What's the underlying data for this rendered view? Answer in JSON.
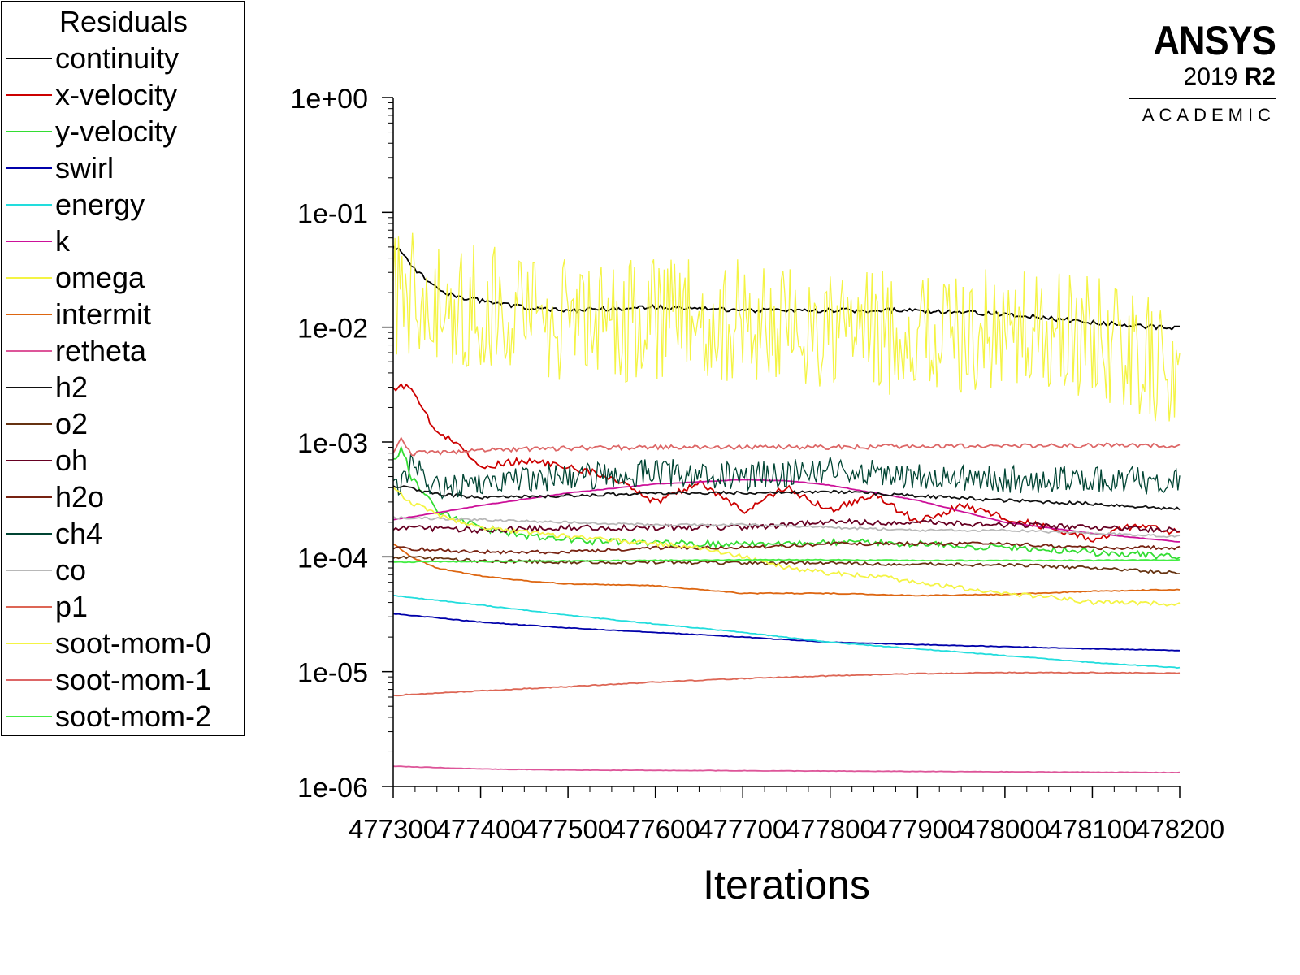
{
  "legend": {
    "title": "Residuals",
    "items": [
      {
        "label": "continuity",
        "color": "#000000"
      },
      {
        "label": "x-velocity",
        "color": "#cc0000"
      },
      {
        "label": "y-velocity",
        "color": "#33dd33"
      },
      {
        "label": "swirl",
        "color": "#0000aa"
      },
      {
        "label": "energy",
        "color": "#22dddd"
      },
      {
        "label": "k",
        "color": "#cc1199"
      },
      {
        "label": "omega",
        "color": "#f4f444"
      },
      {
        "label": "intermit",
        "color": "#dd6611"
      },
      {
        "label": "retheta",
        "color": "#dd5599"
      },
      {
        "label": "h2",
        "color": "#111111"
      },
      {
        "label": "o2",
        "color": "#663311"
      },
      {
        "label": "oh",
        "color": "#660022"
      },
      {
        "label": "h2o",
        "color": "#772211"
      },
      {
        "label": "ch4",
        "color": "#004433"
      },
      {
        "label": "co",
        "color": "#b8b8b8"
      },
      {
        "label": "p1",
        "color": "#dd6655"
      },
      {
        "label": "soot-mom-0",
        "color": "#f4f444"
      },
      {
        "label": "soot-mom-1",
        "color": "#dd6666"
      },
      {
        "label": "soot-mom-2",
        "color": "#44ee44"
      }
    ]
  },
  "brand": {
    "name": "ANSYS",
    "version": "2019",
    "release": "R2",
    "edition": "ACADEMIC"
  },
  "chart_data": {
    "type": "line",
    "title": "",
    "xlabel": "Iterations",
    "ylabel": "",
    "yscale": "log",
    "xlim": [
      477300,
      478200
    ],
    "ylim": [
      1e-06,
      1
    ],
    "x_ticks": [
      "477300",
      "477400",
      "477500",
      "477600",
      "477700",
      "477800",
      "477900",
      "478000",
      "478100",
      "478200"
    ],
    "y_ticks": [
      "1e+00",
      "1e-01",
      "1e-02",
      "1e-03",
      "1e-04",
      "1e-05",
      "1e-06"
    ],
    "series": [
      {
        "name": "continuity",
        "color": "#000000",
        "noise": 0.02,
        "x": [
          477300,
          477310,
          477320,
          477340,
          477360,
          477380,
          477400,
          477450,
          477500,
          477600,
          477700,
          477800,
          477900,
          478000,
          478100,
          478200
        ],
        "y": [
          0.05,
          0.045,
          0.035,
          0.025,
          0.02,
          0.018,
          0.017,
          0.015,
          0.014,
          0.015,
          0.014,
          0.014,
          0.014,
          0.013,
          0.011,
          0.0097
        ]
      },
      {
        "name": "x-velocity",
        "color": "#cc0000",
        "noise": 0.03,
        "x": [
          477300,
          477315,
          477330,
          477350,
          477380,
          477400,
          477450,
          477500,
          477550,
          477600,
          477650,
          477700,
          477750,
          477800,
          477850,
          477900,
          477950,
          478000,
          478050,
          478100,
          478150,
          478200
        ],
        "y": [
          0.0028,
          0.0032,
          0.0022,
          0.0012,
          0.0009,
          0.0006,
          0.0007,
          0.0006,
          0.0005,
          0.0003,
          0.00045,
          0.00025,
          0.0004,
          0.00025,
          0.00035,
          0.0002,
          0.00028,
          0.00022,
          0.00018,
          0.00014,
          0.00019,
          0.00016
        ]
      },
      {
        "name": "y-velocity",
        "color": "#33dd33",
        "noise": 0.03,
        "x": [
          477300,
          477310,
          477320,
          477330,
          477350,
          477400,
          477450,
          477500,
          477600,
          477700,
          477800,
          477900,
          478000,
          478100,
          478200
        ],
        "y": [
          0.0007,
          0.0009,
          0.0005,
          0.0004,
          0.00025,
          0.00018,
          0.00015,
          0.00014,
          0.00013,
          0.00013,
          0.000135,
          0.00013,
          0.00012,
          0.00011,
          0.0001
        ]
      },
      {
        "name": "swirl",
        "color": "#0000aa",
        "noise": 0.003,
        "x": [
          477300,
          477400,
          477500,
          477600,
          477700,
          477800,
          477900,
          478000,
          478100,
          478200
        ],
        "y": [
          3.2e-05,
          2.7e-05,
          2.4e-05,
          2.2e-05,
          2e-05,
          1.8e-05,
          1.72e-05,
          1.65e-05,
          1.58e-05,
          1.53e-05
        ]
      },
      {
        "name": "energy",
        "color": "#22dddd",
        "noise": 0.003,
        "x": [
          477300,
          477400,
          477500,
          477600,
          477700,
          477800,
          477900,
          478000,
          478100,
          478200
        ],
        "y": [
          4.6e-05,
          3.8e-05,
          3.1e-05,
          2.6e-05,
          2.2e-05,
          1.8e-05,
          1.58e-05,
          1.38e-05,
          1.2e-05,
          1.08e-05
        ]
      },
      {
        "name": "k",
        "color": "#cc1199",
        "noise": 0.002,
        "x": [
          477300,
          477400,
          477500,
          477600,
          477700,
          477750,
          477800,
          477900,
          478000,
          478100,
          478200
        ],
        "y": [
          0.00021,
          0.00028,
          0.00036,
          0.00043,
          0.00047,
          0.00046,
          0.00042,
          0.00031,
          0.0002,
          0.00016,
          0.000135
        ]
      },
      {
        "name": "omega",
        "color": "#f4f444",
        "noise": 0.55,
        "x": [
          477300,
          477400,
          477500,
          477600,
          477700,
          477800,
          477900,
          478000,
          478100,
          478150,
          478200
        ],
        "y": [
          0.02,
          0.015,
          0.012,
          0.011,
          0.011,
          0.009,
          0.009,
          0.009,
          0.008,
          0.006,
          0.004
        ]
      },
      {
        "name": "intermit",
        "color": "#dd6611",
        "noise": 0.004,
        "x": [
          477300,
          477320,
          477350,
          477400,
          477450,
          477500,
          477600,
          477700,
          477800,
          477900,
          478000,
          478100,
          478200
        ],
        "y": [
          0.00013,
          0.0001,
          8e-05,
          6.8e-05,
          6.2e-05,
          5.8e-05,
          5.6e-05,
          4.8e-05,
          4.8e-05,
          4.6e-05,
          4.7e-05,
          5e-05,
          5.2e-05
        ]
      },
      {
        "name": "retheta",
        "color": "#dd5599",
        "noise": 0.002,
        "x": [
          477300,
          477400,
          477500,
          477600,
          477700,
          477800,
          477900,
          478000,
          478100,
          478200
        ],
        "y": [
          1.5e-06,
          1.42e-06,
          1.39e-06,
          1.38e-06,
          1.37e-06,
          1.36e-06,
          1.35e-06,
          1.34e-06,
          1.33e-06,
          1.32e-06
        ]
      },
      {
        "name": "h2",
        "color": "#111111",
        "noise": 0.015,
        "x": [
          477300,
          477320,
          477350,
          477400,
          477500,
          477600,
          477700,
          477800,
          477900,
          478000,
          478100,
          478200
        ],
        "y": [
          0.00042,
          0.00039,
          0.00035,
          0.00033,
          0.00034,
          0.00036,
          0.00036,
          0.00037,
          0.00034,
          0.00031,
          0.00029,
          0.00026
        ]
      },
      {
        "name": "o2",
        "color": "#663311",
        "noise": 0.015,
        "x": [
          477300,
          477400,
          477500,
          477600,
          477700,
          477800,
          477900,
          478000,
          478100,
          478200
        ],
        "y": [
          0.0001,
          9.2e-05,
          9e-05,
          9e-05,
          8.8e-05,
          8.8e-05,
          8.6e-05,
          8.5e-05,
          8e-05,
          7.2e-05
        ]
      },
      {
        "name": "oh",
        "color": "#660022",
        "noise": 0.025,
        "x": [
          477300,
          477400,
          477500,
          477600,
          477700,
          477800,
          477900,
          478000,
          478100,
          478200
        ],
        "y": [
          0.00018,
          0.00017,
          0.00018,
          0.00018,
          0.00018,
          0.0002,
          0.0002,
          0.00019,
          0.00018,
          0.00017
        ]
      },
      {
        "name": "h2o",
        "color": "#772211",
        "noise": 0.015,
        "x": [
          477300,
          477400,
          477500,
          477600,
          477700,
          477800,
          477900,
          478000,
          478100,
          478200
        ],
        "y": [
          0.00012,
          0.00011,
          0.00011,
          0.00012,
          0.00012,
          0.00013,
          0.00013,
          0.00013,
          0.00012,
          0.00012
        ]
      },
      {
        "name": "ch4",
        "color": "#004433",
        "noise": 0.12,
        "x": [
          477300,
          477320,
          477350,
          477400,
          477500,
          477600,
          477700,
          477800,
          477900,
          478000,
          478100,
          478200
        ],
        "y": [
          0.0004,
          0.0006,
          0.0004,
          0.00045,
          0.0005,
          0.00055,
          0.0005,
          0.00058,
          0.0005,
          0.00047,
          0.00048,
          0.00045
        ]
      },
      {
        "name": "co",
        "color": "#b8b8b8",
        "noise": 0.01,
        "x": [
          477300,
          477400,
          477500,
          477600,
          477700,
          477800,
          477900,
          478000,
          478100,
          478200
        ],
        "y": [
          0.00022,
          0.00021,
          0.0002,
          0.00019,
          0.00019,
          0.00018,
          0.00017,
          0.00017,
          0.00016,
          0.00015
        ]
      },
      {
        "name": "p1",
        "color": "#dd6655",
        "noise": 0.004,
        "x": [
          477300,
          477400,
          477500,
          477600,
          477700,
          477800,
          477900,
          478000,
          478100,
          478200
        ],
        "y": [
          6.2e-06,
          6.8e-06,
          7.4e-06,
          8.1e-06,
          8.7e-06,
          9.2e-06,
          9.6e-06,
          9.8e-06,
          9.8e-06,
          9.7e-06
        ]
      },
      {
        "name": "soot-mom-0",
        "color": "#f4f444",
        "noise": 0.02,
        "x": [
          477300,
          477320,
          477350,
          477400,
          477500,
          477600,
          477650,
          477700,
          477750,
          477800,
          477850,
          477900,
          478000,
          478050,
          478100,
          478200
        ],
        "y": [
          0.0004,
          0.0003,
          0.00023,
          0.00018,
          0.00015,
          0.00013,
          0.00012,
          0.0001,
          8e-05,
          7.2e-05,
          6.8e-05,
          6e-05,
          4.8e-05,
          4.5e-05,
          4e-05,
          3.9e-05
        ]
      },
      {
        "name": "soot-mom-1",
        "color": "#dd6666",
        "noise": 0.02,
        "x": [
          477300,
          477310,
          477320,
          477350,
          477400,
          477500,
          477600,
          477700,
          477800,
          477900,
          478000,
          478100,
          478200
        ],
        "y": [
          0.0008,
          0.0011,
          0.0008,
          0.0008,
          0.00085,
          0.00088,
          0.0009,
          0.0009,
          0.0009,
          0.00092,
          0.00093,
          0.00093,
          0.00093
        ]
      },
      {
        "name": "soot-mom-2",
        "color": "#44ee44",
        "noise": 0.004,
        "x": [
          477300,
          477400,
          477500,
          477600,
          477700,
          477800,
          477900,
          478000,
          478100,
          478200
        ],
        "y": [
          9e-05,
          9.1e-05,
          9.2e-05,
          9.3e-05,
          9.4e-05,
          9.4e-05,
          9.3e-05,
          9.3e-05,
          9.3e-05,
          9.4e-05
        ]
      }
    ]
  }
}
